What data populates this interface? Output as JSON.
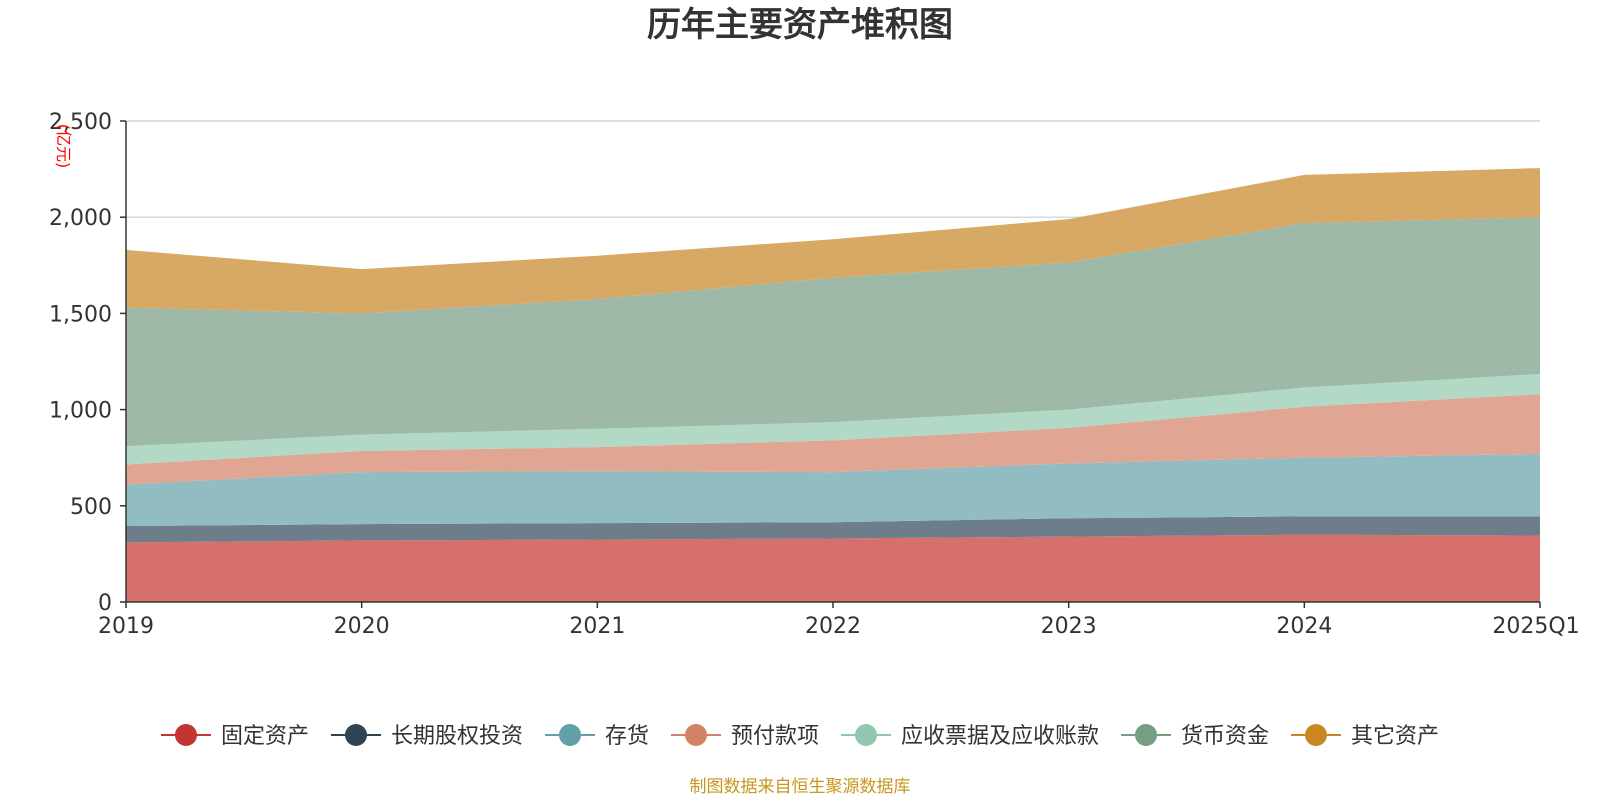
{
  "chart_data": {
    "type": "area",
    "stacked": true,
    "title": "历年主要资产堆积图",
    "unit_label": "(亿元)",
    "x": [
      "2019",
      "2020",
      "2021",
      "2022",
      "2023",
      "2024",
      "2025Q1"
    ],
    "ylim": [
      0,
      2500
    ],
    "yticks": [
      "0",
      "500",
      "1,000",
      "1,500",
      "2,000",
      "2,500"
    ],
    "ytick_values": [
      0,
      500,
      1000,
      1500,
      2000,
      2500
    ],
    "grid": true,
    "legend_position": "bottom",
    "series": [
      {
        "name": "固定资产",
        "color": "#c23531",
        "fill": "#d5706d",
        "values": [
          310,
          320,
          325,
          330,
          340,
          350,
          345
        ]
      },
      {
        "name": "长期股权投资",
        "color": "#2f4554",
        "fill": "#6d7d89",
        "values": [
          85,
          85,
          85,
          85,
          95,
          95,
          100
        ]
      },
      {
        "name": "存货",
        "color": "#61a0a8",
        "fill": "#90bcc2",
        "values": [
          215,
          270,
          270,
          260,
          285,
          305,
          325
        ]
      },
      {
        "name": "预付款项",
        "color": "#d48265",
        "fill": "#e0a693",
        "values": [
          105,
          110,
          125,
          165,
          185,
          265,
          310
        ]
      },
      {
        "name": "应收票据及应收账款",
        "color": "#91c7ae",
        "fill": "#b2d8c6",
        "values": [
          95,
          85,
          95,
          95,
          95,
          100,
          105
        ]
      },
      {
        "name": "货币资金",
        "color": "#749f83",
        "fill": "#9eb9a7",
        "values": [
          720,
          630,
          675,
          750,
          765,
          855,
          815
        ]
      },
      {
        "name": "其它资产",
        "color": "#ca8622",
        "fill": "#d8a964",
        "values": [
          300,
          230,
          225,
          200,
          225,
          250,
          255
        ]
      }
    ]
  },
  "footer": {
    "source": "制图数据来自恒生聚源数据库"
  }
}
